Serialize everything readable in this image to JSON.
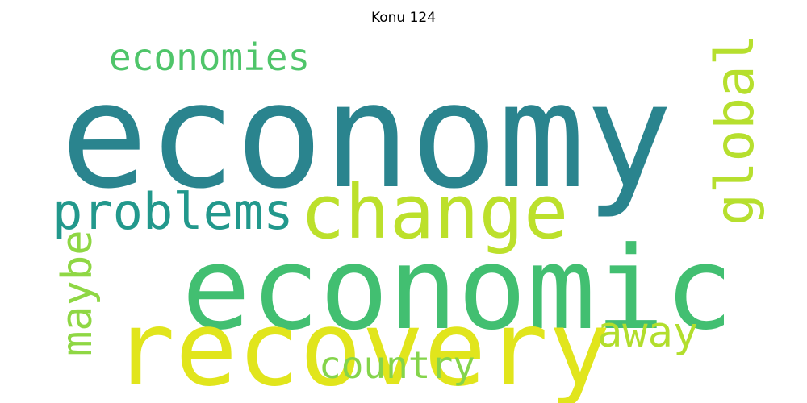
{
  "title": "Konu 124",
  "words": {
    "economy": {
      "text": "economy",
      "color": "#2a848e"
    },
    "economic": {
      "text": "economic",
      "color": "#42bf71"
    },
    "recovery": {
      "text": "recovery",
      "color": "#e1e51c"
    },
    "change": {
      "text": "change",
      "color": "#bce02b"
    },
    "problems": {
      "text": "problems",
      "color": "#22988c"
    },
    "economies": {
      "text": "economies",
      "color": "#4fc56a"
    },
    "country": {
      "text": "country",
      "color": "#84d44b"
    },
    "away": {
      "text": "away",
      "color": "#b2de2d"
    },
    "global": {
      "text": "global",
      "color": "#b6df2e"
    },
    "maybe": {
      "text": "maybe",
      "color": "#8fd744"
    }
  }
}
